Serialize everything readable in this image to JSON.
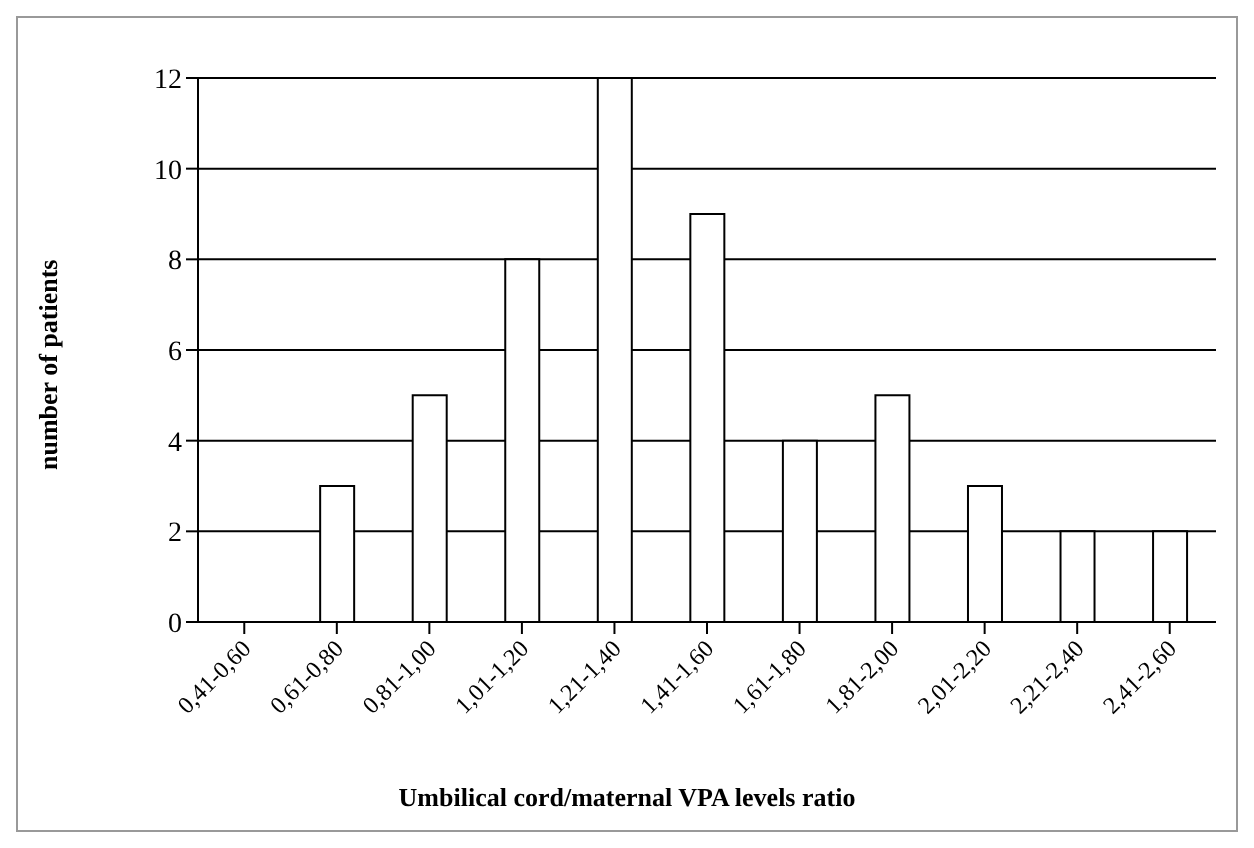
{
  "chart_data": {
    "type": "bar",
    "xlabel": "Umbilical cord/maternal VPA levels ratio",
    "ylabel": "number of patients",
    "categories": [
      "0,41-0,60",
      "0,61-0,80",
      "0,81-1,00",
      "1,01-1,20",
      "1,21-1,40",
      "1,41-1,60",
      "1,61-1,80",
      "1,81-2,00",
      "2,01-2,20",
      "2,21-2,40",
      "2,41-2,60"
    ],
    "values": [
      0,
      3,
      5,
      8,
      12,
      9,
      4,
      5,
      3,
      2,
      2
    ],
    "color": "#ffffff",
    "ylim": [
      0,
      12
    ],
    "yticks": [
      0,
      2,
      4,
      6,
      8,
      10,
      12
    ],
    "grid": "y"
  }
}
